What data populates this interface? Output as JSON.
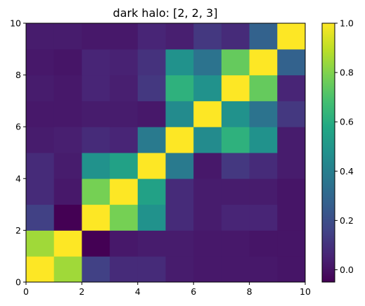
{
  "chart_data": {
    "type": "heatmap",
    "title": "dark halo: [2, 2, 3]",
    "xlabel": "",
    "ylabel": "",
    "xlim": [
      0,
      10
    ],
    "ylim": [
      0,
      10
    ],
    "x_ticks": [
      "0",
      "2",
      "4",
      "6",
      "8",
      "10"
    ],
    "y_ticks": [
      "0",
      "2",
      "4",
      "6",
      "8",
      "10"
    ],
    "colormap": "viridis",
    "color_range": [
      -0.05,
      1.0
    ],
    "colorbar_ticks": [
      "0.0",
      "0.2",
      "0.4",
      "0.6",
      "0.8",
      "1.0"
    ],
    "colorbar_tick_values": [
      0.0,
      0.2,
      0.4,
      0.6,
      0.8,
      1.0
    ],
    "rows_bottom_to_top": [
      [
        1.0,
        0.85,
        0.15,
        0.08,
        0.08,
        0.03,
        0.02,
        0.02,
        0.02,
        0.01
      ],
      [
        0.85,
        1.0,
        -0.05,
        0.02,
        0.03,
        0.03,
        0.02,
        0.02,
        0.01,
        0.01
      ],
      [
        0.15,
        -0.05,
        1.0,
        0.78,
        0.48,
        0.08,
        0.03,
        0.06,
        0.06,
        0.01
      ],
      [
        0.08,
        0.02,
        0.78,
        1.0,
        0.55,
        0.08,
        0.03,
        0.03,
        0.03,
        0.01
      ],
      [
        0.08,
        0.03,
        0.48,
        0.55,
        1.0,
        0.38,
        0.02,
        0.12,
        0.08,
        0.03
      ],
      [
        0.03,
        0.04,
        0.08,
        0.06,
        0.38,
        1.0,
        0.45,
        0.62,
        0.48,
        0.03
      ],
      [
        0.02,
        0.02,
        0.03,
        0.03,
        0.02,
        0.45,
        1.0,
        0.48,
        0.35,
        0.12
      ],
      [
        0.03,
        0.02,
        0.06,
        0.04,
        0.12,
        0.62,
        0.48,
        1.0,
        0.75,
        0.06
      ],
      [
        0.02,
        0.01,
        0.06,
        0.05,
        0.1,
        0.48,
        0.35,
        0.75,
        1.0,
        0.28
      ],
      [
        0.03,
        0.03,
        0.02,
        0.02,
        0.06,
        0.04,
        0.12,
        0.08,
        0.28,
        1.0
      ]
    ]
  }
}
